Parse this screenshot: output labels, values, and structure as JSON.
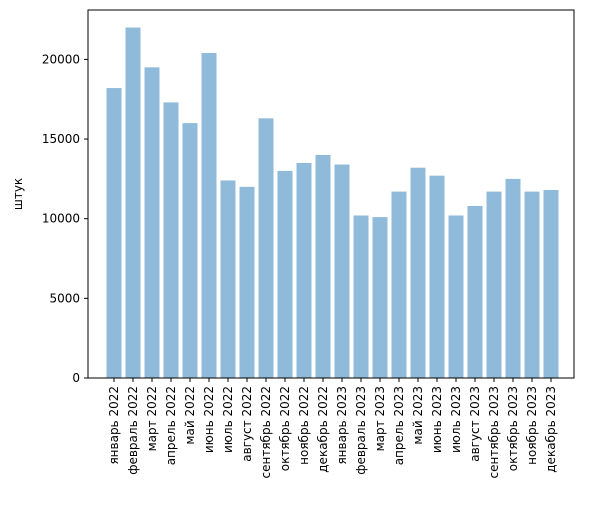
{
  "chart_data": {
    "type": "bar",
    "title": "",
    "xlabel": "",
    "ylabel": "штук",
    "ylim": [
      0,
      23100
    ],
    "yticks": [
      0,
      5000,
      10000,
      15000,
      20000
    ],
    "grid": false,
    "bar_color": "#8fbad9",
    "categories": [
      "январь 2022",
      "февраль 2022",
      "март 2022",
      "апрель 2022",
      "май 2022",
      "июнь 2022",
      "июль 2022",
      "август 2022",
      "сентябрь 2022",
      "октябрь 2022",
      "ноябрь 2022",
      "декабрь 2022",
      "январь 2023",
      "февраль 2023",
      "март 2023",
      "апрель 2023",
      "май 2023",
      "июнь 2023",
      "июль 2023",
      "август 2023",
      "сентябрь 2023",
      "октябрь 2023",
      "ноябрь 2023",
      "декабрь 2023"
    ],
    "values": [
      18200,
      22000,
      19500,
      17300,
      16000,
      20400,
      12400,
      12000,
      16300,
      13000,
      13500,
      14000,
      13400,
      10200,
      10100,
      11700,
      13200,
      12700,
      10200,
      10800,
      11700,
      12500,
      11700,
      11800
    ]
  }
}
